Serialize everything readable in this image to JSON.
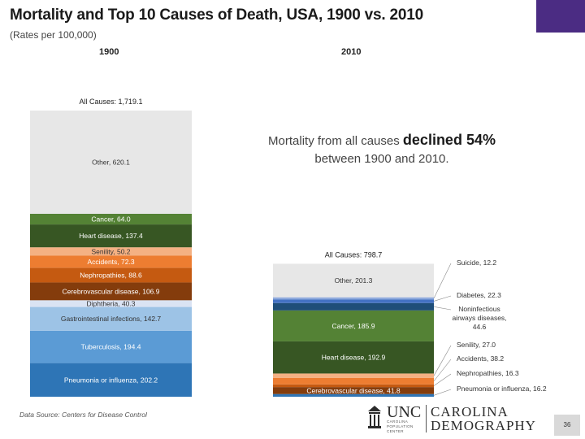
{
  "title": "Mortality and Top 10 Causes of Death, USA, 1900 vs. 2010",
  "subtitle": "(Rates per 100,000)",
  "callout": {
    "line1_prefix": "Mortality from all causes",
    "line1_bold": "declined 54%",
    "line2": "between 1900 and 2010."
  },
  "source": "Data Source: Centers for Disease Control",
  "page_number": "36",
  "logo": {
    "unc": "UNC",
    "carolina": "CAROLINA",
    "demography": "DEMOGRAPHY",
    "unc_sub": [
      "CAROLINA",
      "POPULATION",
      "CENTER"
    ]
  },
  "colors": {
    "accent": "#4b2c83",
    "other": "#e7e7e7"
  },
  "chart_data": {
    "type": "bar",
    "stacked": true,
    "title": "Mortality and Top 10 Causes of Death, USA, 1900 vs. 2010",
    "ylabel": "Rates per 100,000",
    "categories": [
      "1900",
      "2010"
    ],
    "totals": [
      {
        "label": "All Causes: 1,719.1",
        "value": 1719.1
      },
      {
        "label": "All Causes: 798.7",
        "value": 798.7
      }
    ],
    "bars": [
      {
        "year": "1900",
        "segments": [
          {
            "name": "Pneumonia or influenza",
            "label": "Pneumonia or influenza, 202.2",
            "value": 202.2,
            "color": "#2e75b6"
          },
          {
            "name": "Tuberculosis",
            "label": "Tuberculosis, 194.4",
            "value": 194.4,
            "color": "#5b9bd5"
          },
          {
            "name": "Gastrointestinal infections",
            "label": "Gastrointestinal infections, 142.7",
            "value": 142.7,
            "color": "#9dc3e6"
          },
          {
            "name": "Diphtheria",
            "label": "Diphtheria, 40.3",
            "value": 40.3,
            "color": "#dae3f3"
          },
          {
            "name": "Cerebrovascular disease",
            "label": "Cerebrovascular disease, 106.9",
            "value": 106.9,
            "color": "#843c0c"
          },
          {
            "name": "Nephropathies",
            "label": "Nephropathies, 88.6",
            "value": 88.6,
            "color": "#c55a11"
          },
          {
            "name": "Accidents",
            "label": "Accidents, 72.3",
            "value": 72.3,
            "color": "#ed7d31"
          },
          {
            "name": "Senility",
            "label": "Senility, 50.2",
            "value": 50.2,
            "color": "#f4b183"
          },
          {
            "name": "Heart disease",
            "label": "Heart disease, 137.4",
            "value": 137.4,
            "color": "#375623"
          },
          {
            "name": "Cancer",
            "label": "Cancer, 64.0",
            "value": 64.0,
            "color": "#548235"
          },
          {
            "name": "Other",
            "label": "Other, 620.1",
            "value": 620.1,
            "color": "#e7e7e7"
          }
        ]
      },
      {
        "year": "2010",
        "segments": [
          {
            "name": "Pneumonia or influenza",
            "label": "",
            "value": 16.2,
            "color": "#2e75b6"
          },
          {
            "name": "Cerebrovascular disease",
            "label": "Cerebrovascular disease, 41.8",
            "value": 41.8,
            "color": "#843c0c"
          },
          {
            "name": "Nephropathies",
            "label": "",
            "value": 16.3,
            "color": "#c55a11"
          },
          {
            "name": "Accidents",
            "label": "",
            "value": 38.2,
            "color": "#ed7d31"
          },
          {
            "name": "Senility",
            "label": "",
            "value": 27.0,
            "color": "#f4b183"
          },
          {
            "name": "Heart disease",
            "label": "Heart disease, 192.9",
            "value": 192.9,
            "color": "#375623"
          },
          {
            "name": "Cancer",
            "label": "Cancer, 185.9",
            "value": 185.9,
            "color": "#548235"
          },
          {
            "name": "Noninfectious airways diseases",
            "label": "",
            "value": 44.6,
            "color": "#1f4e79"
          },
          {
            "name": "Diabetes",
            "label": "",
            "value": 22.3,
            "color": "#4472c4"
          },
          {
            "name": "Suicide",
            "label": "",
            "value": 12.2,
            "color": "#8faadc"
          },
          {
            "name": "Other",
            "label": "Other, 201.3",
            "value": 201.3,
            "color": "#e7e7e7"
          }
        ]
      }
    ],
    "callouts_2010": [
      {
        "name": "Suicide",
        "lines": [
          "Suicide, 12.2"
        ]
      },
      {
        "name": "Diabetes",
        "lines": [
          "Diabetes, 22.3"
        ]
      },
      {
        "name": "Noninfectious airways diseases",
        "lines": [
          "Noninfectious",
          "airways diseases,",
          "44.6"
        ]
      },
      {
        "name": "Senility",
        "lines": [
          "Senility, 27.0"
        ]
      },
      {
        "name": "Accidents",
        "lines": [
          "Accidents, 38.2"
        ]
      },
      {
        "name": "Nephropathies",
        "lines": [
          "Nephropathies, 16.3"
        ]
      },
      {
        "name": "Pneumonia or influenza",
        "lines": [
          "Pneumonia or influenza, 16.2"
        ]
      }
    ]
  }
}
